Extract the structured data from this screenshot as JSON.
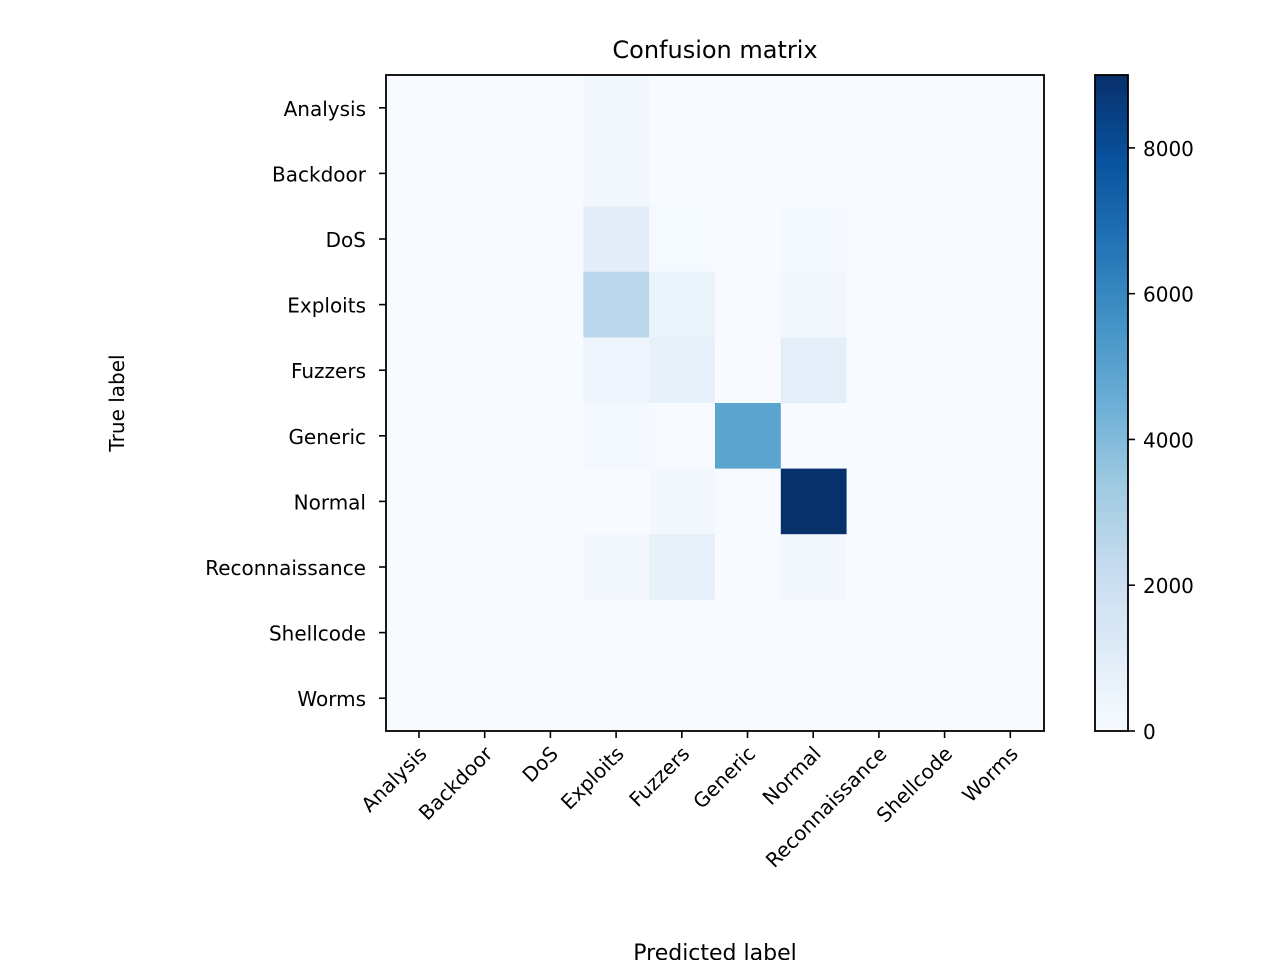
{
  "chart_data": {
    "type": "heatmap",
    "title": "Confusion matrix",
    "xlabel": "Predicted label",
    "ylabel": "True label",
    "x_categories": [
      "Analysis",
      "Backdoor",
      "DoS",
      "Exploits",
      "Fuzzers",
      "Generic",
      "Normal",
      "Reconnaissance",
      "Shellcode",
      "Worms"
    ],
    "y_categories": [
      "Analysis",
      "Backdoor",
      "DoS",
      "Exploits",
      "Fuzzers",
      "Generic",
      "Normal",
      "Reconnaissance",
      "Shellcode",
      "Worms"
    ],
    "matrix": [
      [
        0,
        0,
        0,
        250,
        0,
        0,
        0,
        0,
        0,
        0
      ],
      [
        0,
        0,
        0,
        250,
        0,
        0,
        0,
        0,
        0,
        0
      ],
      [
        0,
        0,
        0,
        950,
        80,
        0,
        120,
        0,
        0,
        0
      ],
      [
        0,
        0,
        0,
        2600,
        500,
        0,
        250,
        0,
        0,
        0
      ],
      [
        0,
        0,
        0,
        400,
        700,
        0,
        900,
        0,
        0,
        0
      ],
      [
        0,
        0,
        0,
        150,
        50,
        4900,
        0,
        0,
        0,
        0
      ],
      [
        0,
        0,
        0,
        0,
        200,
        0,
        9000,
        0,
        0,
        0
      ],
      [
        0,
        0,
        0,
        200,
        700,
        0,
        200,
        0,
        0,
        0
      ],
      [
        0,
        0,
        0,
        0,
        50,
        0,
        0,
        0,
        0,
        0
      ],
      [
        0,
        0,
        0,
        0,
        0,
        0,
        0,
        0,
        0,
        0
      ]
    ],
    "colorbar": {
      "vmin": 0,
      "vmax": 9000,
      "ticks": [
        0,
        2000,
        4000,
        6000,
        8000
      ],
      "colormap": "Blues",
      "colors": [
        "#f7fbff",
        "#deebf7",
        "#c6dbef",
        "#9ecae1",
        "#6baed6",
        "#4292c6",
        "#2171b5",
        "#08519c",
        "#08306b"
      ]
    },
    "grid": false
  }
}
